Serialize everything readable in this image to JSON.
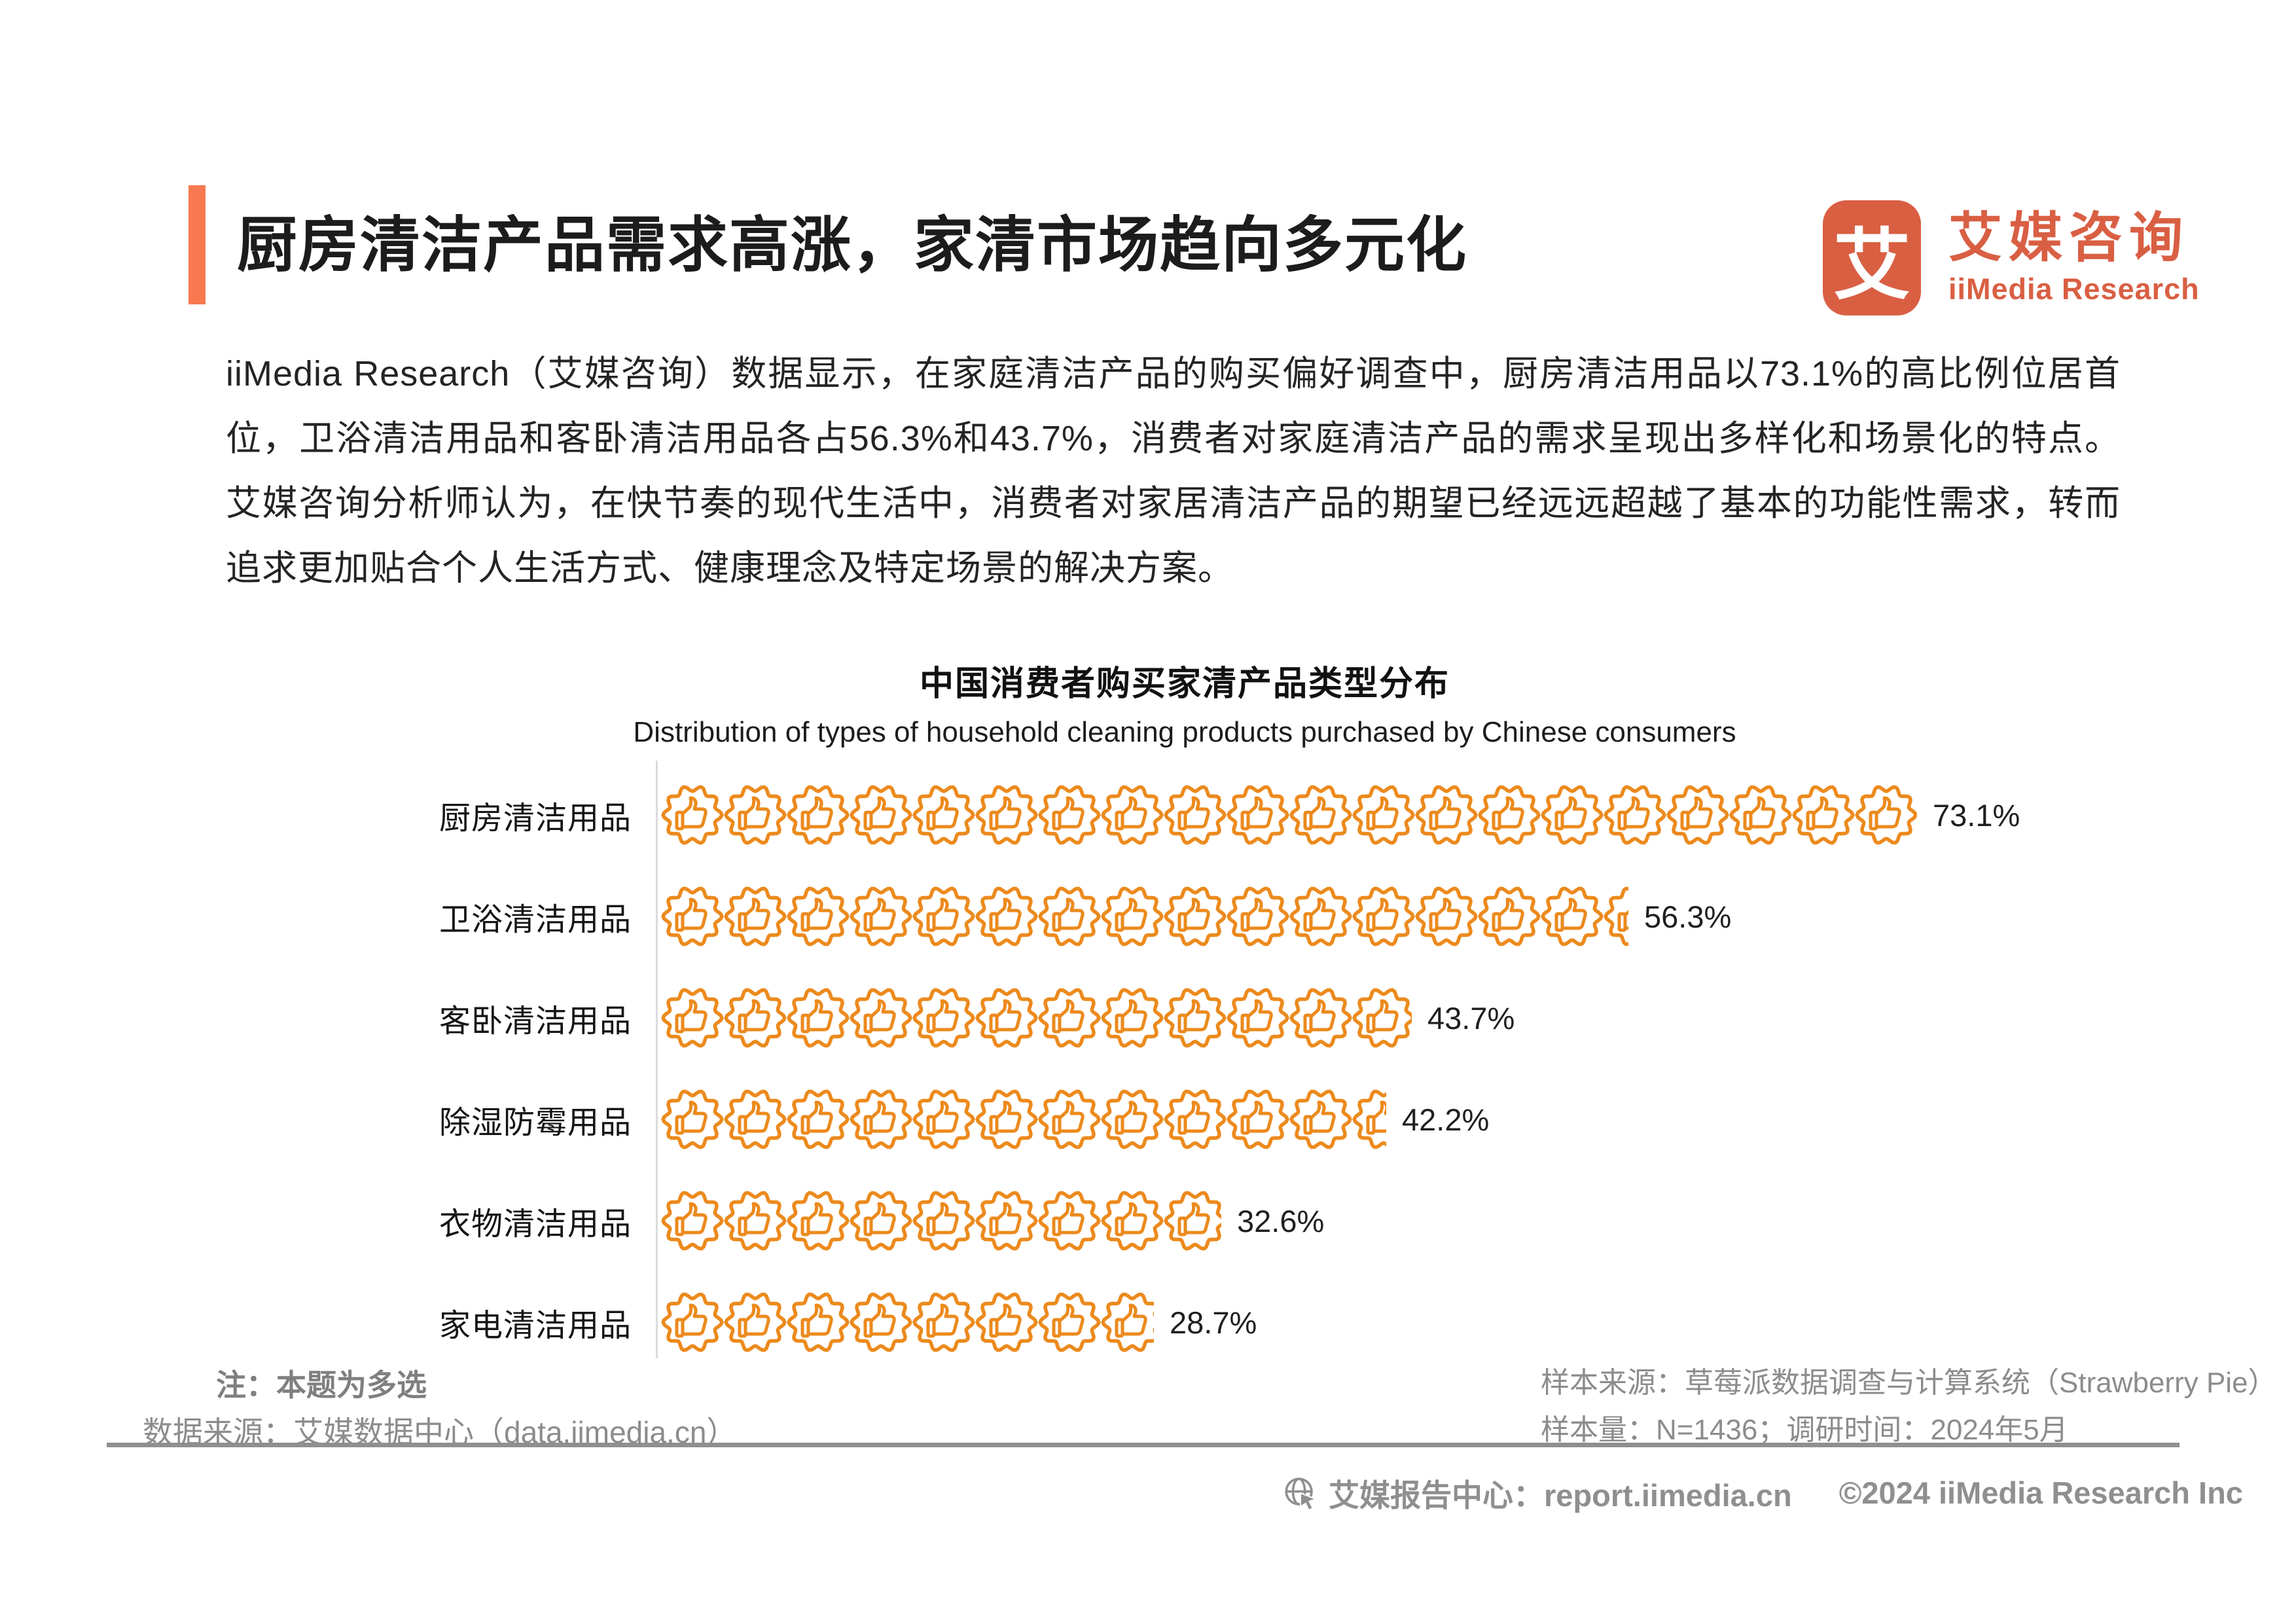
{
  "header": {
    "title": "厨房清洁产品需求高涨，家清市场趋向多元化",
    "logo": {
      "mark": "艾",
      "name_cn": "艾媒咨询",
      "name_en": "iiMedia Research"
    }
  },
  "paragraph": "iiMedia Research（艾媒咨询）数据显示，在家庭清洁产品的购买偏好调查中，厨房清洁用品以73.1%的高比例位居首位，卫浴清洁用品和客卧清洁用品各占56.3%和43.7%，消费者对家庭清洁产品的需求呈现出多样化和场景化的特点。艾媒咨询分析师认为，在快节奏的现代生活中，消费者对家居清洁产品的期望已经远远超越了基本的功能性需求，转而追求更加贴合个人生活方式、健康理念及特定场景的解决方案。",
  "chart_data": {
    "type": "bar",
    "variant": "pictogram-horizontal",
    "title": "中国消费者购买家清产品类型分布",
    "subtitle": "Distribution of types of household cleaning products purchased by Chinese consumers",
    "categories": [
      "厨房清洁用品",
      "卫浴清洁用品",
      "客卧清洁用品",
      "除湿防霉用品",
      "衣物清洁用品",
      "家电清洁用品"
    ],
    "values": [
      73.1,
      56.3,
      43.7,
      42.2,
      32.6,
      28.7
    ],
    "value_labels": [
      "73.1%",
      "56.3%",
      "43.7%",
      "42.2%",
      "32.6%",
      "28.7%"
    ],
    "unit": "%",
    "xlim": [
      0,
      80
    ],
    "grid": false,
    "legend": "none",
    "value_label_position": "end-of-bar",
    "icon": "thumb-up-badge",
    "icon_color": "#EC8A1D"
  },
  "footnotes": {
    "note": "注：本题为多选",
    "data_source": "数据来源：艾媒数据中心（data.iimedia.cn）",
    "sample_source": "样本来源：草莓派数据调查与计算系统（Strawberry Pie）",
    "sample_info": "样本量：N=1436；调研时间：2024年5月"
  },
  "footer": {
    "report_center": "艾媒报告中心：report.iimedia.cn",
    "copyright": "©2024  iiMedia Research Inc"
  },
  "colors": {
    "accent": "#F87950",
    "brand": "#D95F43",
    "icon": "#EC8A1D",
    "gray_text": "#8C8C8C"
  }
}
